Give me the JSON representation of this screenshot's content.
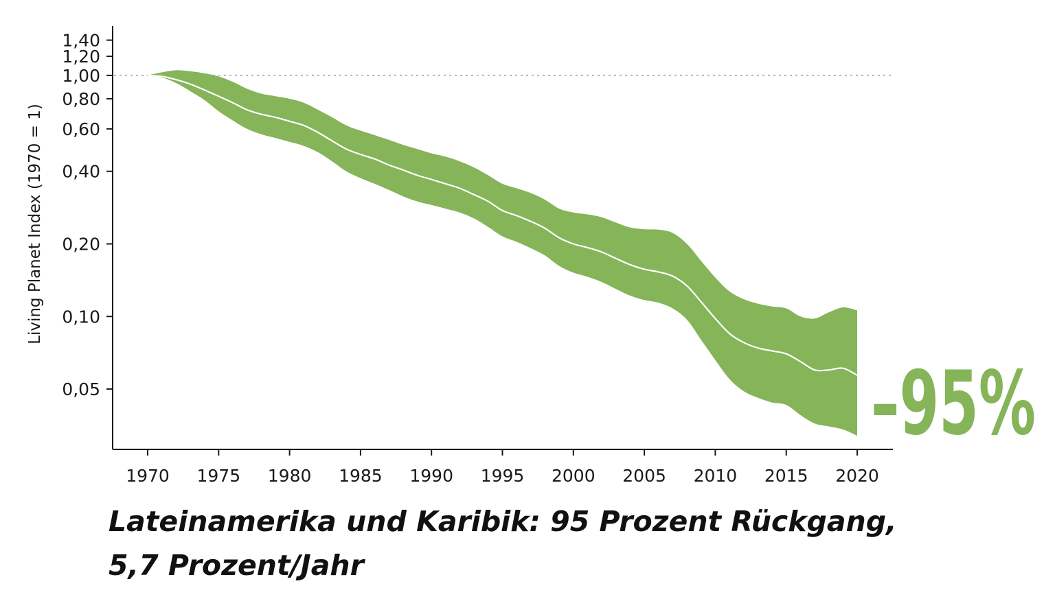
{
  "chart_data": {
    "type": "area",
    "ylabel": "Living Planet Index (1970 = 1)",
    "xlabel": "",
    "y_scale": "log",
    "ylim": [
      0.03,
      1.5
    ],
    "xlim": [
      1970,
      2020
    ],
    "x_ticks": [
      1970,
      1975,
      1980,
      1985,
      1990,
      1995,
      2000,
      2005,
      2010,
      2015,
      2020
    ],
    "x_tick_labels": [
      "1970",
      "1975",
      "1980",
      "1985",
      "1990",
      "1995",
      "2000",
      "2005",
      "2010",
      "2015",
      "2020"
    ],
    "y_ticks": [
      1.4,
      1.2,
      1.0,
      0.8,
      0.6,
      0.4,
      0.2,
      0.1,
      0.05
    ],
    "y_tick_labels": [
      "1,40",
      "1,20",
      "1,00",
      "0,80",
      "0,60",
      "0,40",
      "0,20",
      "0,10",
      "0,05"
    ],
    "reference_line": {
      "y": 1.0,
      "style": "dotted"
    },
    "x": [
      1970,
      1971,
      1972,
      1973,
      1974,
      1975,
      1976,
      1977,
      1978,
      1979,
      1980,
      1981,
      1982,
      1983,
      1984,
      1985,
      1986,
      1987,
      1988,
      1989,
      1990,
      1991,
      1992,
      1993,
      1994,
      1995,
      1996,
      1997,
      1998,
      1999,
      2000,
      2001,
      2002,
      2003,
      2004,
      2005,
      2006,
      2007,
      2008,
      2009,
      2010,
      2011,
      2012,
      2013,
      2014,
      2015,
      2016,
      2017,
      2018,
      2019,
      2020
    ],
    "series": [
      {
        "name": "Index",
        "values": [
          1.0,
          0.99,
          0.96,
          0.92,
          0.87,
          0.82,
          0.77,
          0.72,
          0.69,
          0.67,
          0.645,
          0.62,
          0.58,
          0.535,
          0.495,
          0.47,
          0.45,
          0.425,
          0.405,
          0.385,
          0.37,
          0.355,
          0.34,
          0.32,
          0.3,
          0.275,
          0.262,
          0.248,
          0.232,
          0.212,
          0.2,
          0.193,
          0.185,
          0.174,
          0.164,
          0.157,
          0.153,
          0.147,
          0.134,
          0.115,
          0.098,
          0.085,
          0.078,
          0.074,
          0.072,
          0.07,
          0.065,
          0.06,
          0.06,
          0.061,
          0.057
        ]
      },
      {
        "name": "Upper bound",
        "values": [
          1.0,
          1.03,
          1.05,
          1.04,
          1.02,
          0.99,
          0.94,
          0.88,
          0.84,
          0.82,
          0.8,
          0.77,
          0.72,
          0.67,
          0.62,
          0.59,
          0.565,
          0.54,
          0.515,
          0.495,
          0.475,
          0.46,
          0.44,
          0.415,
          0.385,
          0.355,
          0.34,
          0.325,
          0.305,
          0.28,
          0.27,
          0.265,
          0.258,
          0.245,
          0.234,
          0.23,
          0.229,
          0.222,
          0.2,
          0.17,
          0.145,
          0.127,
          0.118,
          0.113,
          0.11,
          0.108,
          0.1,
          0.098,
          0.104,
          0.109,
          0.106
        ]
      },
      {
        "name": "Lower bound",
        "values": [
          1.0,
          0.98,
          0.93,
          0.86,
          0.79,
          0.71,
          0.65,
          0.6,
          0.57,
          0.55,
          0.53,
          0.51,
          0.48,
          0.44,
          0.4,
          0.375,
          0.355,
          0.335,
          0.315,
          0.3,
          0.29,
          0.28,
          0.27,
          0.255,
          0.235,
          0.215,
          0.204,
          0.192,
          0.179,
          0.162,
          0.152,
          0.146,
          0.139,
          0.13,
          0.122,
          0.117,
          0.114,
          0.108,
          0.097,
          0.08,
          0.066,
          0.055,
          0.049,
          0.046,
          0.044,
          0.043,
          0.039,
          0.036,
          0.035,
          0.034,
          0.032
        ]
      }
    ],
    "annotation": "–95%",
    "title": ""
  },
  "colors": {
    "band": "#85b459",
    "index_line": "#ffffff",
    "axis": "#1a1a1a",
    "reference": "#b5b5b5",
    "callout": "#85b459"
  },
  "caption": {
    "line1": "Lateinamerika und Karibik: 95 Prozent Rückgang,",
    "line2": "5,7 Prozent/Jahr"
  }
}
